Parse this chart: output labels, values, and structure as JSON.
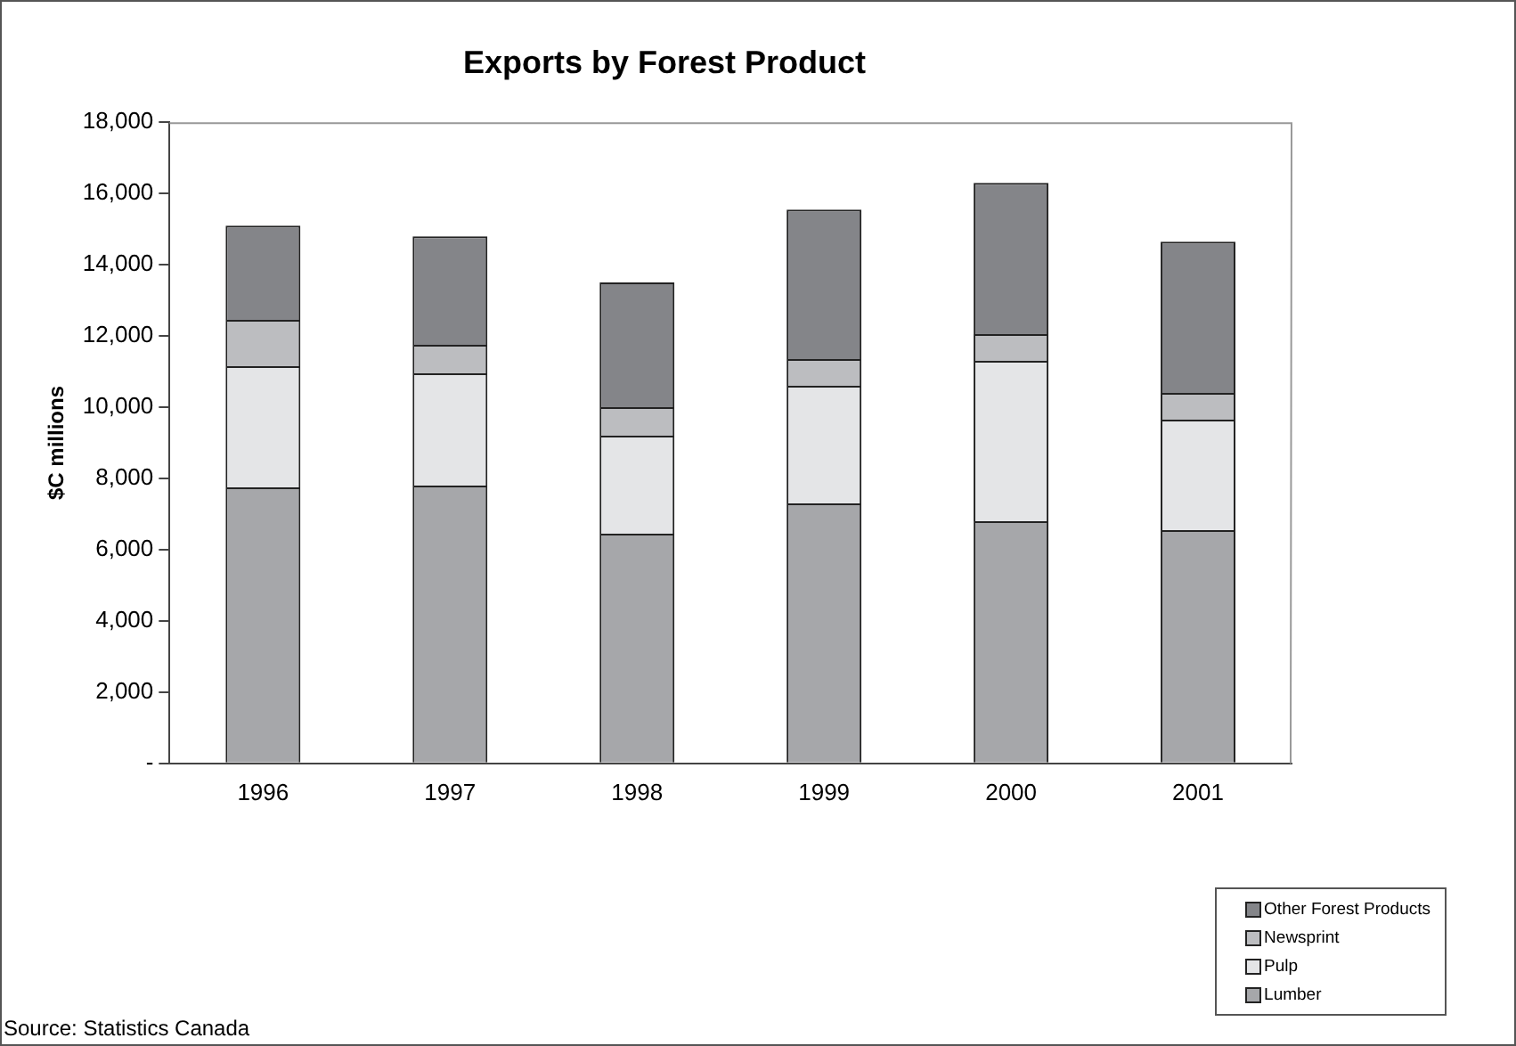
{
  "chart_data": {
    "type": "bar",
    "stacked": true,
    "title": "Exports by Forest Product",
    "ylabel": "$C millions",
    "categories": [
      "1996",
      "1997",
      "1998",
      "1999",
      "2000",
      "2001"
    ],
    "series": [
      {
        "name": "Lumber",
        "color": "#a6a7aa",
        "values": [
          7750,
          7800,
          6450,
          7300,
          6800,
          6550
        ]
      },
      {
        "name": "Pulp",
        "color": "#e4e5e7",
        "values": [
          3400,
          3150,
          2750,
          3300,
          4500,
          3100
        ]
      },
      {
        "name": "Newsprint",
        "color": "#bcbdc0",
        "values": [
          1300,
          800,
          800,
          750,
          750,
          750
        ]
      },
      {
        "name": "Other Forest Products",
        "color": "#848589",
        "values": [
          2650,
          3050,
          3500,
          4200,
          4250,
          4250
        ]
      }
    ],
    "ylim": [
      0,
      18000
    ],
    "yticks": [
      {
        "value": 0,
        "label": "-"
      },
      {
        "value": 2000,
        "label": "2,000"
      },
      {
        "value": 4000,
        "label": "4,000"
      },
      {
        "value": 6000,
        "label": "6,000"
      },
      {
        "value": 8000,
        "label": "8,000"
      },
      {
        "value": 10000,
        "label": "10,000"
      },
      {
        "value": 12000,
        "label": "12,000"
      },
      {
        "value": 14000,
        "label": "14,000"
      },
      {
        "value": 16000,
        "label": "16,000"
      },
      {
        "value": 18000,
        "label": "18,000"
      }
    ],
    "grid": false,
    "legend": "bottom right",
    "annotations": [
      "Source: Statistics Canada"
    ]
  }
}
